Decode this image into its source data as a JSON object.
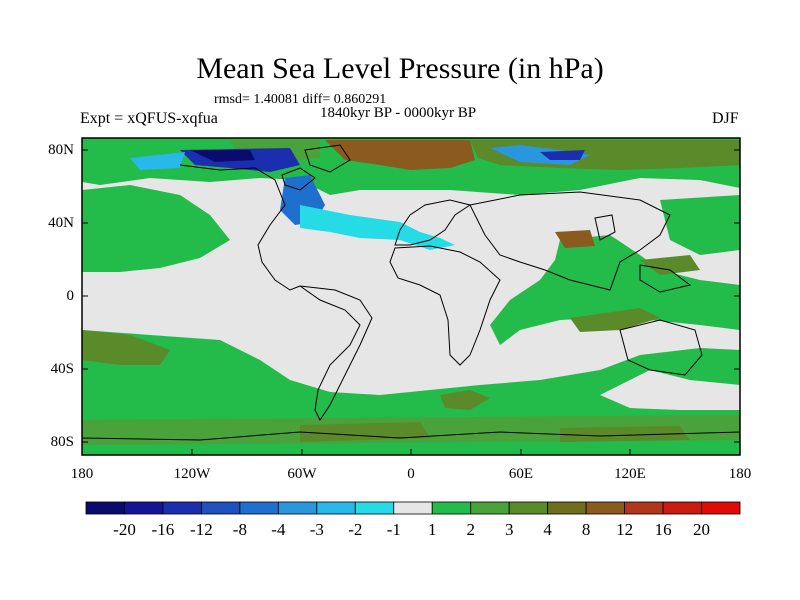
{
  "title": "Mean Sea Level Pressure (in hPa)",
  "stats": "rmsd= 1.40081 diff= 0.860291",
  "period": "1840kyr BP - 0000kyr BP",
  "experiment": "Expt = xQFUS-xqfua",
  "season": "DJF",
  "lat_labels": [
    "80N",
    "40N",
    "0",
    "40S",
    "80S"
  ],
  "lon_labels": [
    "180",
    "120W",
    "60W",
    "0",
    "60E",
    "120E",
    "180"
  ],
  "colorbar": {
    "labels": [
      "-20",
      "-16",
      "-12",
      "-8",
      "-4",
      "-3",
      "-2",
      "-1",
      "1",
      "2",
      "3",
      "4",
      "8",
      "12",
      "16",
      "20"
    ],
    "colors": [
      "#0b0b6e",
      "#141496",
      "#1b2fae",
      "#1f50c0",
      "#1f6fce",
      "#2a96de",
      "#29b8ea",
      "#25dce6",
      "#e6e6e6",
      "#23bb4a",
      "#4aa23a",
      "#5a8a2a",
      "#6e6e1e",
      "#8a5a1e",
      "#b2361a",
      "#cc1a10",
      "#e00a06"
    ]
  },
  "colors": {
    "land_background": "#e6e6e6",
    "green": "#23bb4a",
    "olive": "#5a8a2a",
    "brown": "#8a5a1e",
    "blue": "#1f6fce",
    "cyan": "#25dce6"
  }
}
